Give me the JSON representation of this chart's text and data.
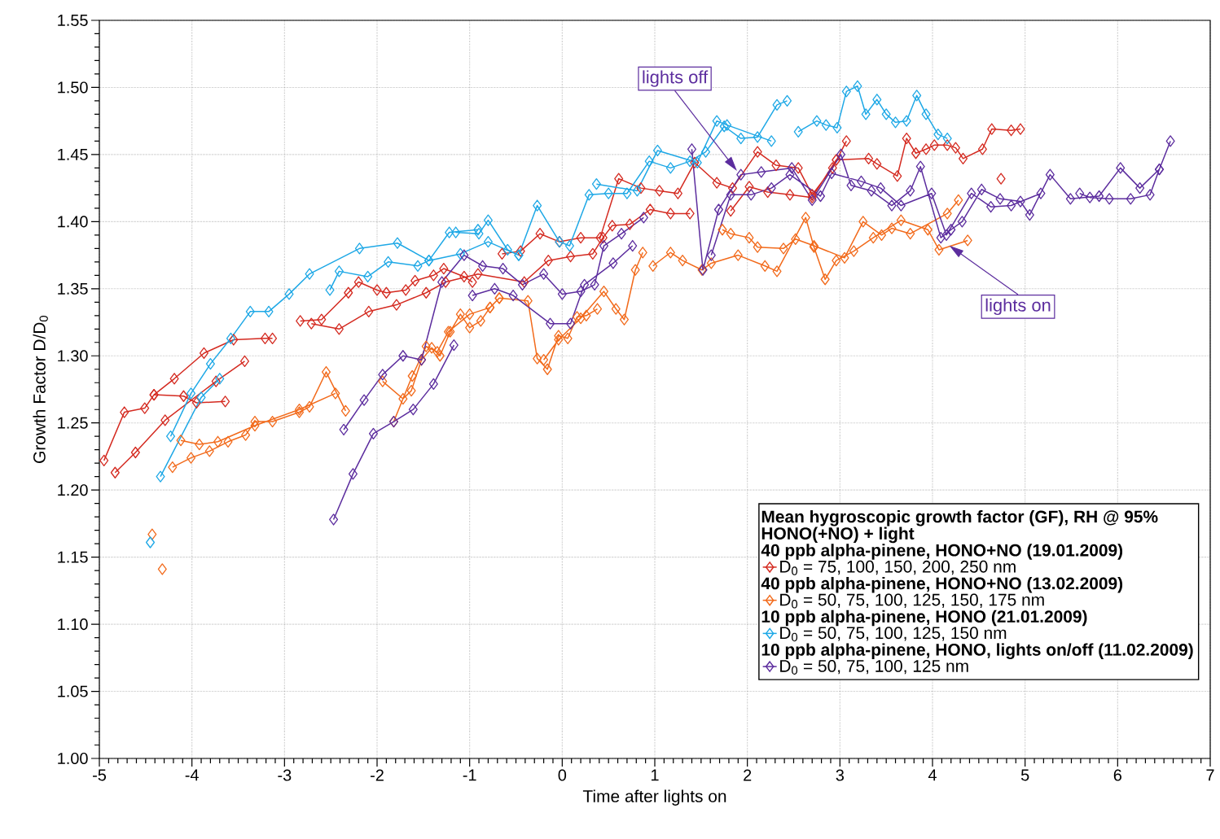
{
  "chart_data": {
    "type": "line",
    "xlabel": "Time after lights on",
    "ylabel": "Growth Factor D/D$_{0}$",
    "legend_title": "Mean hygroscopic growth factor (GF), RH @ 95%",
    "xlim": [
      -5,
      7
    ],
    "ylim": [
      1.0,
      1.55
    ],
    "xticks": [
      -5,
      -4,
      -3,
      -2,
      -1,
      0,
      1,
      2,
      3,
      4,
      5,
      6,
      7
    ],
    "yticks": [
      {
        "value": 1.0,
        "label": "1.00"
      },
      {
        "value": 1.05,
        "label": "1.05"
      },
      {
        "value": 1.1,
        "label": "1.10"
      },
      {
        "value": 1.15,
        "label": "1.15"
      },
      {
        "value": 1.2,
        "label": "1.20"
      },
      {
        "value": 1.25,
        "label": "1.25"
      },
      {
        "value": 1.3,
        "label": "1.30"
      },
      {
        "value": 1.35,
        "label": "1.35"
      },
      {
        "value": 1.4,
        "label": "1.40"
      },
      {
        "value": 1.45,
        "label": "1.45"
      },
      {
        "value": 1.5,
        "label": "1.50"
      },
      {
        "value": 1.55,
        "label": "1.55"
      }
    ],
    "grid": true,
    "legend": "bottom right",
    "marker": "diamond",
    "line_style": "solid",
    "series": [
      {
        "name": "D$_{0}$ = 75, 100, 150, 200, 250 nm",
        "color": "#d42a20",
        "x": [
          -4.95,
          -4.73,
          -4.51,
          -4.41,
          -4.19,
          -3.87,
          -3.55,
          -3.21,
          -3.13,
          null,
          -4.83,
          -4.61,
          -4.29,
          -3.74,
          -3.43,
          null,
          -4.41,
          -4.09,
          -3.95,
          -3.64,
          null,
          -2.83,
          -2.6,
          -2.31,
          -2.2,
          -2.0,
          -1.9,
          -1.69,
          -1.59,
          -1.39,
          -1.28,
          -1.06,
          -0.97,
          null,
          -2.71,
          -2.41,
          -2.09,
          -1.79,
          -1.47,
          -1.26,
          -0.91,
          -0.41,
          -0.15,
          0.09,
          0.33,
          0.44,
          0.54,
          0.73,
          0.95,
          1.17,
          1.38,
          null,
          -0.65,
          -0.45,
          -0.24,
          -0.03,
          0.2,
          0.41,
          0.61,
          0.85,
          1.05,
          1.25,
          1.43,
          1.67,
          1.84,
          2.11,
          2.31,
          2.55,
          2.7,
          2.92,
          3.07,
          null,
          1.82,
          2.02,
          2.22,
          2.46,
          2.7,
          2.96,
          3.31,
          3.4,
          3.62,
          3.72,
          3.82,
          3.93,
          4.02,
          4.16,
          4.25,
          4.33,
          4.54,
          4.64,
          4.85,
          4.95,
          null,
          4.74
        ],
        "values": [
          1.222,
          1.258,
          1.261,
          1.271,
          1.283,
          1.302,
          1.312,
          1.313,
          1.313,
          null,
          1.213,
          1.228,
          1.252,
          1.281,
          1.296,
          null,
          1.271,
          1.27,
          1.265,
          1.266,
          null,
          1.326,
          1.327,
          1.347,
          1.355,
          1.349,
          1.347,
          1.349,
          1.356,
          1.36,
          1.365,
          1.359,
          1.355,
          null,
          1.324,
          1.32,
          1.333,
          1.338,
          1.347,
          1.355,
          1.361,
          1.355,
          1.371,
          1.374,
          1.376,
          1.388,
          1.397,
          1.398,
          1.409,
          1.406,
          1.406,
          null,
          1.376,
          1.378,
          1.391,
          1.385,
          1.388,
          1.388,
          1.432,
          1.425,
          1.423,
          1.421,
          1.444,
          1.429,
          1.425,
          1.452,
          1.442,
          1.44,
          1.42,
          1.44,
          1.46,
          null,
          1.408,
          1.426,
          1.422,
          1.42,
          1.418,
          1.446,
          1.447,
          1.443,
          1.434,
          1.462,
          1.451,
          1.454,
          1.457,
          1.457,
          1.455,
          1.447,
          1.454,
          1.469,
          1.468,
          1.469,
          null,
          1.432
        ]
      },
      {
        "name": "D$_{0}$ = 50, 75, 100, 125, 150, 175 nm",
        "color": "#f26a1b",
        "x": [
          -4.43,
          null,
          -4.32,
          null,
          -4.21,
          -4.01,
          -3.81,
          -3.61,
          -3.42,
          -3.32,
          -3.13,
          -2.84,
          -2.73,
          -2.55,
          -2.34,
          null,
          -4.12,
          -3.92,
          -3.72,
          -3.32,
          -2.84,
          -2.45,
          null,
          -1.94,
          -1.72,
          -1.63,
          -1.52,
          -1.41,
          -1.32,
          -1.21,
          -1.1,
          -1.0,
          -0.88,
          -0.78,
          -0.68,
          -0.37,
          -0.27,
          -0.16,
          -0.04,
          0.06,
          0.16,
          0.26,
          0.38,
          null,
          -1.82,
          -1.62,
          -1.47,
          -1.35,
          -1.23,
          -1.0,
          -0.78,
          -0.68,
          null,
          -0.2,
          -0.04,
          0.2,
          0.45,
          0.58,
          0.67,
          0.79,
          0.87,
          null,
          0.98,
          1.17,
          1.3,
          1.51,
          1.61,
          1.9,
          2.19,
          2.32,
          2.63,
          2.72,
          2.84,
          2.96,
          3.15,
          3.36,
          3.66,
          3.95,
          4.07,
          4.38,
          null,
          1.73,
          1.82,
          2.02,
          2.11,
          2.39,
          2.52,
          2.72,
          3.05,
          3.25,
          3.45,
          3.56,
          3.76,
          4.16,
          4.28
        ],
        "values": [
          1.167,
          null,
          1.141,
          null,
          1.217,
          1.224,
          1.229,
          1.236,
          1.241,
          1.251,
          1.251,
          1.258,
          1.262,
          1.288,
          1.259,
          null,
          1.237,
          1.234,
          1.236,
          1.248,
          1.26,
          1.272,
          null,
          1.281,
          1.268,
          1.274,
          1.297,
          1.306,
          1.3,
          1.318,
          1.331,
          1.321,
          1.326,
          1.336,
          1.343,
          1.341,
          1.298,
          1.29,
          1.315,
          1.313,
          1.329,
          1.33,
          1.335,
          null,
          1.251,
          1.285,
          1.307,
          1.303,
          1.318,
          1.331,
          1.336,
          1.343,
          null,
          1.297,
          1.312,
          1.328,
          1.348,
          1.335,
          1.327,
          1.364,
          1.377,
          null,
          1.367,
          1.377,
          1.371,
          1.364,
          1.369,
          1.375,
          1.367,
          1.363,
          1.403,
          1.381,
          1.357,
          1.371,
          1.378,
          1.388,
          1.401,
          1.394,
          1.379,
          1.386,
          null,
          1.394,
          1.391,
          1.388,
          1.381,
          1.38,
          1.387,
          1.382,
          1.373,
          1.4,
          1.39,
          1.395,
          1.391,
          1.406,
          1.416
        ]
      },
      {
        "name": "D$_{0}$ = 50, 75, 100, 125, 150 nm",
        "color": "#1ea8e6",
        "x": [
          -4.45,
          null,
          -4.34,
          -3.9,
          -3.7,
          null,
          -4.23,
          -4.01,
          -3.8,
          -3.58,
          -3.37,
          -3.17,
          -2.95,
          -2.73,
          -2.19,
          -1.78,
          -1.44,
          -1.22,
          -0.91,
          null,
          -2.51,
          -2.41,
          -2.1,
          -1.88,
          -1.56,
          -1.44,
          -1.1,
          -0.8,
          -0.47,
          null,
          -1.15,
          -0.9,
          -0.8,
          -0.59,
          -0.47,
          -0.27,
          -0.03,
          0.08,
          0.29,
          0.5,
          0.7,
          0.94,
          1.17,
          1.38,
          1.55,
          1.75,
          1.93,
          2.11,
          2.32,
          2.43,
          null,
          0.37,
          0.81,
          1.03,
          1.46,
          1.67,
          1.78,
          2.26,
          null,
          2.55,
          2.75,
          2.85,
          2.97,
          3.07,
          3.19,
          3.28,
          3.4,
          3.5,
          3.6,
          3.72,
          3.83,
          3.93,
          4.06,
          4.16
        ],
        "values": [
          1.161,
          null,
          1.21,
          1.269,
          1.283,
          null,
          1.24,
          1.272,
          1.294,
          1.313,
          1.333,
          1.333,
          1.346,
          1.361,
          1.38,
          1.384,
          1.371,
          1.392,
          1.394,
          null,
          1.349,
          1.363,
          1.359,
          1.37,
          1.367,
          1.371,
          1.376,
          1.385,
          1.375,
          null,
          1.392,
          1.391,
          1.401,
          1.379,
          1.375,
          1.412,
          1.385,
          1.382,
          1.42,
          1.421,
          1.421,
          1.445,
          1.44,
          1.445,
          1.452,
          1.471,
          1.462,
          1.463,
          1.487,
          1.49,
          null,
          1.428,
          1.423,
          1.453,
          1.444,
          1.475,
          1.472,
          1.46,
          null,
          1.467,
          1.475,
          1.472,
          1.47,
          1.497,
          1.501,
          1.48,
          1.491,
          1.48,
          1.474,
          1.475,
          1.494,
          1.48,
          1.465,
          1.462
        ]
      },
      {
        "name": "D$_{0}$ = 50, 75, 100, 125 nm",
        "color": "#5c2d9e",
        "x": [
          -2.47,
          -2.26,
          -2.04,
          -1.82,
          -1.61,
          -1.39,
          -1.17,
          null,
          -2.36,
          -2.14,
          -1.94,
          -1.72,
          -1.52,
          -1.3,
          -1.06,
          -0.86,
          -0.64,
          -0.43,
          -0.2,
          0.0,
          0.2,
          0.35,
          0.45,
          0.64,
          0.88,
          null,
          -0.97,
          -0.73,
          -0.53,
          -0.13,
          0.09,
          0.24,
          0.55,
          0.76,
          null,
          1.4,
          1.52,
          1.69,
          1.93,
          2.15,
          2.48,
          2.7,
          3.01,
          3.12,
          3.34,
          3.56,
          3.76,
          3.87,
          4.09,
          4.2,
          4.32,
          4.53,
          4.73,
          4.95,
          5.05,
          5.27,
          5.49,
          5.8,
          6.03,
          6.24,
          6.45,
          6.57,
          null,
          1.61,
          1.82,
          2.04,
          2.26,
          2.46,
          2.79,
          2.91,
          3.23,
          3.44,
          3.66,
          3.99,
          4.15,
          4.42,
          4.63,
          4.85,
          5.17,
          null,
          5.59,
          5.7,
          5.91,
          6.14,
          6.35,
          6.45
        ],
        "values": [
          1.178,
          1.212,
          1.242,
          1.251,
          1.26,
          1.279,
          1.308,
          null,
          1.245,
          1.267,
          1.286,
          1.3,
          1.297,
          1.355,
          1.375,
          1.367,
          1.365,
          1.353,
          1.361,
          1.346,
          1.348,
          1.353,
          1.382,
          1.391,
          1.403,
          null,
          1.345,
          1.35,
          1.345,
          1.324,
          1.324,
          1.353,
          1.369,
          1.382,
          null,
          1.454,
          1.364,
          1.409,
          1.435,
          1.437,
          1.44,
          1.416,
          1.45,
          1.427,
          1.423,
          1.412,
          1.423,
          1.441,
          1.388,
          1.394,
          1.4,
          1.424,
          1.417,
          1.415,
          1.405,
          1.435,
          1.417,
          1.419,
          1.44,
          1.425,
          1.439,
          1.46,
          null,
          1.375,
          1.42,
          1.42,
          1.425,
          1.435,
          1.419,
          1.436,
          1.43,
          1.425,
          1.412,
          1.421,
          1.39,
          1.421,
          1.411,
          1.412,
          1.421,
          null,
          1.421,
          1.418,
          1.417,
          1.417,
          1.42,
          1.439
        ]
      }
    ],
    "annotations": [
      "HONO(+NO) + light",
      "40 ppb alpha-pinene, HONO+NO (19.01.2009)",
      "40 ppb alpha-pinene, HONO+NO (13.02.2009)",
      "10 ppb alpha-pinene, HONO (21.01.2009)",
      "10 ppb alpha-pinene, HONO, lights on/off (11.02.2009)",
      "lights off",
      "lights on"
    ]
  }
}
